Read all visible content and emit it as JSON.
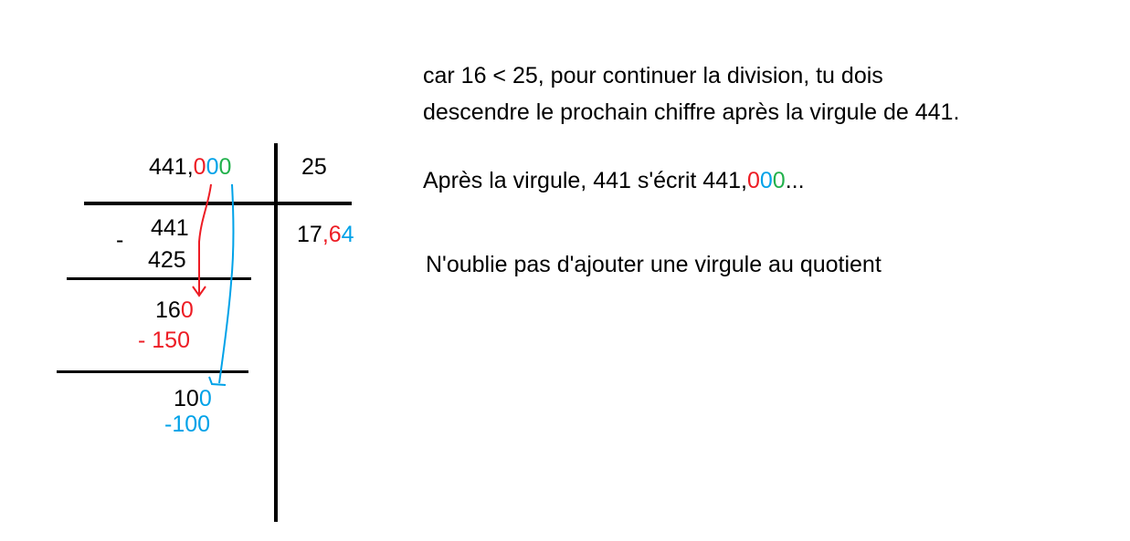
{
  "colors": {
    "red": "#ed1c24",
    "blue": "#00a2e8",
    "green": "#22b14c"
  },
  "division": {
    "dividend": {
      "int": "441,",
      "d1": "0",
      "d2": "0",
      "d3": "0"
    },
    "divisor": "25",
    "quotient": {
      "int": "17",
      "comma": ",",
      "d1": "6",
      "d2": "4"
    },
    "minus_sign": "-",
    "step1": {
      "partial": "441",
      "subtract": "425"
    },
    "step2": {
      "partial_int": "16",
      "partial_digit": "0",
      "subtract": "- 150"
    },
    "step3": {
      "partial_int": "10",
      "partial_digit": "0",
      "subtract": "-100"
    }
  },
  "explanation": {
    "line1": "car 16 < 25, pour continuer la division, tu dois",
    "line2": "descendre le prochain chiffre après la virgule de 441.",
    "line3_prefix": "Après la virgule, 441 s'écrit 441,",
    "line3_d1": "0",
    "line3_d2": "0",
    "line3_d3": "0",
    "line3_suffix": "...",
    "line4": "N'oublie pas d'ajouter une virgule au quotient"
  }
}
